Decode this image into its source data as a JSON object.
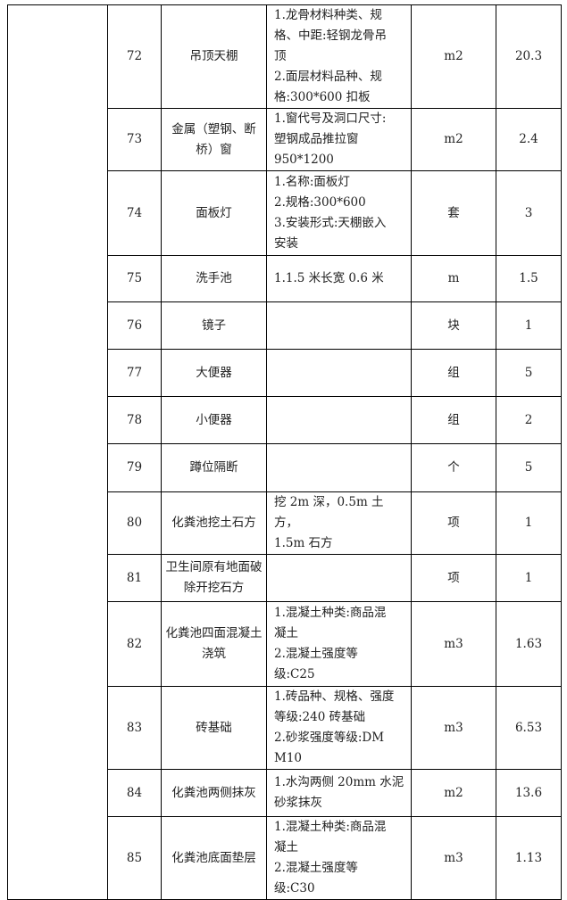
{
  "rows": [
    {
      "no": "72",
      "name": "吊顶天棚",
      "desc": "1.龙骨材料种类、规\n格、中距:轻钢龙骨吊\n顶\n2.面层材料品种、规\n格:300*600 扣板",
      "unit": "m2",
      "qty": "20.3"
    },
    {
      "no": "73",
      "name": "金属（塑钢、断桥）窗",
      "desc": "1.窗代号及洞口尺寸:\n塑钢成品推拉窗\n950*1200",
      "unit": "m2",
      "qty": "2.4"
    },
    {
      "no": "74",
      "name": "面板灯",
      "desc": "1.名称:面板灯\n2.规格:300*600\n3.安装形式:天棚嵌入\n安装",
      "unit": "套",
      "qty": "3"
    },
    {
      "no": "75",
      "name": "洗手池",
      "desc": "1.1.5 米长宽 0.6 米",
      "unit": "m",
      "qty": "1.5"
    },
    {
      "no": "76",
      "name": "镜子",
      "desc": "",
      "unit": "块",
      "qty": "1"
    },
    {
      "no": "77",
      "name": "大便器",
      "desc": "",
      "unit": "组",
      "qty": "5"
    },
    {
      "no": "78",
      "name": "小便器",
      "desc": "",
      "unit": "组",
      "qty": "2"
    },
    {
      "no": "79",
      "name": "蹲位隔断",
      "desc": "",
      "unit": "个",
      "qty": "5"
    },
    {
      "no": "80",
      "name": "化粪池挖土石方",
      "desc": "挖 2m 深，0.5m 土方，\n1.5m 石方",
      "unit": "项",
      "qty": "1"
    },
    {
      "no": "81",
      "name": "卫生间原有地面破除开挖石方",
      "desc": "",
      "unit": "项",
      "qty": "1"
    },
    {
      "no": "82",
      "name": "化粪池四面混凝土浇筑",
      "desc": "1.混凝土种类:商品混\n凝土\n2.混凝土强度等\n级:C25",
      "unit": "m3",
      "qty": "1.63"
    },
    {
      "no": "83",
      "name": "砖基础",
      "desc": "1.砖品种、规格、强度\n等级:240 砖基础\n2.砂浆强度等级:DM\nM10",
      "unit": "m3",
      "qty": "6.53"
    },
    {
      "no": "84",
      "name": "化粪池两侧抹灰",
      "desc": "1.水沟两侧 20mm 水泥\n砂浆抹灰",
      "unit": "m2",
      "qty": "13.6"
    },
    {
      "no": "85",
      "name": "化粪池底面垫层",
      "desc": "1.混凝土种类:商品混\n凝土\n2.混凝土强度等\n级:C30",
      "unit": "m3",
      "qty": "1.13"
    }
  ]
}
